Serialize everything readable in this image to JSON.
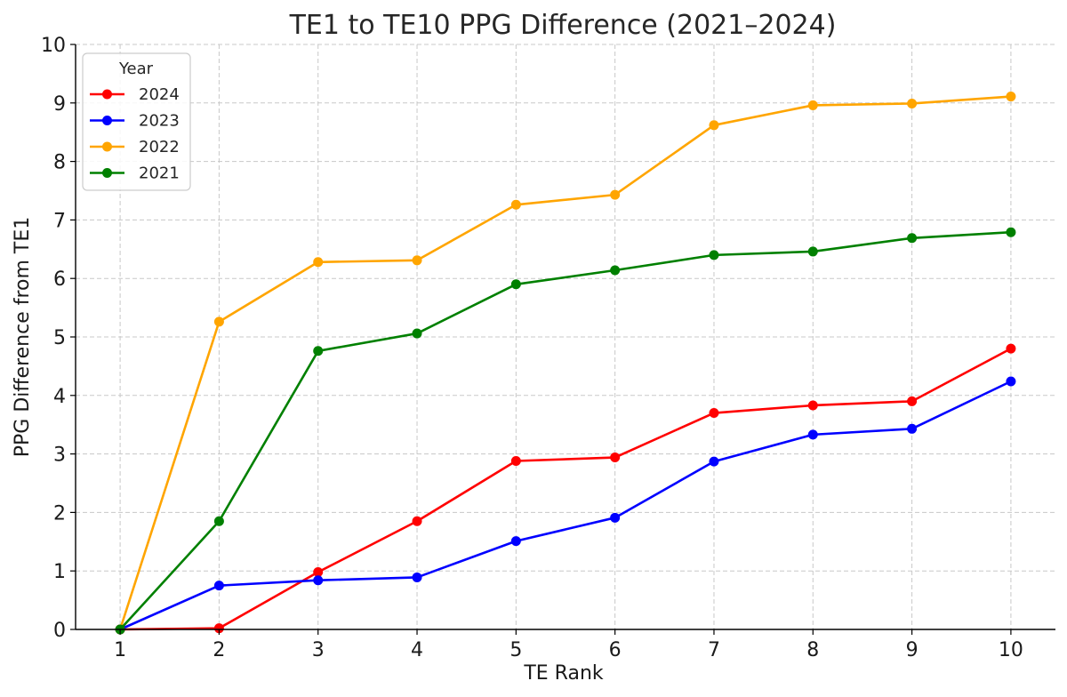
{
  "chart_data": {
    "type": "line",
    "title": "TE1 to TE10 PPG Difference (2021–2024)",
    "xlabel": "TE Rank",
    "ylabel": "PPG Difference from TE1",
    "x": [
      1,
      2,
      3,
      4,
      5,
      6,
      7,
      8,
      9,
      10
    ],
    "xlim": [
      0.55,
      10.45
    ],
    "ylim": [
      0,
      10
    ],
    "yticks": [
      0,
      1,
      2,
      3,
      4,
      5,
      6,
      7,
      8,
      9,
      10
    ],
    "grid": true,
    "legend": {
      "title": "Year",
      "position": "top-left"
    },
    "series": [
      {
        "name": "2024",
        "color": "#ff0000",
        "values": [
          0,
          0.02,
          0.98,
          1.85,
          2.88,
          2.94,
          3.7,
          3.83,
          3.9,
          4.8
        ]
      },
      {
        "name": "2023",
        "color": "#0000ff",
        "values": [
          0,
          0.75,
          0.84,
          0.89,
          1.51,
          1.91,
          2.87,
          3.33,
          3.43,
          4.24
        ]
      },
      {
        "name": "2022",
        "color": "#ffa500",
        "values": [
          0,
          5.26,
          6.28,
          6.31,
          7.26,
          7.43,
          8.62,
          8.96,
          8.99,
          9.11
        ]
      },
      {
        "name": "2021",
        "color": "#008000",
        "values": [
          0,
          1.85,
          4.76,
          5.06,
          5.9,
          6.14,
          6.4,
          6.46,
          6.69,
          6.79
        ]
      }
    ]
  }
}
